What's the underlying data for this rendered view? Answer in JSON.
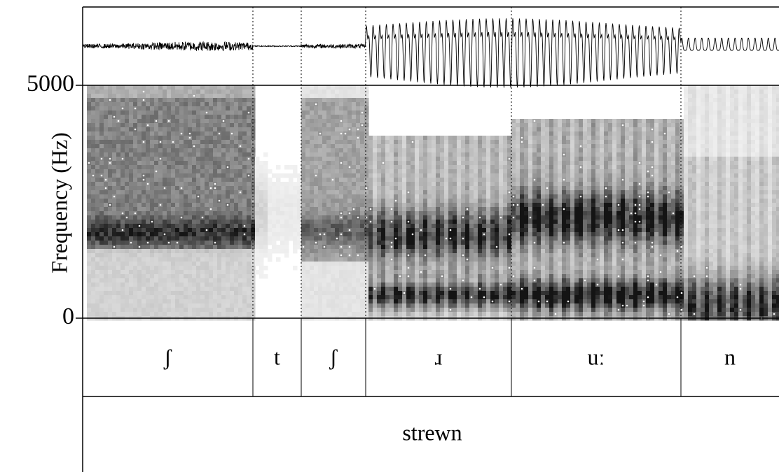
{
  "chart_data": {
    "type": "spectrogram",
    "ylabel": "Frequency (Hz)",
    "ylim": [
      0,
      5000
    ],
    "yticks": [
      0,
      5000
    ],
    "tiers": [
      {
        "intervals": [
          "ʃ",
          "t",
          "ʃ",
          "ɹ",
          "uː",
          "n"
        ]
      },
      {
        "intervals": [
          "strewn"
        ]
      }
    ]
  }
}
